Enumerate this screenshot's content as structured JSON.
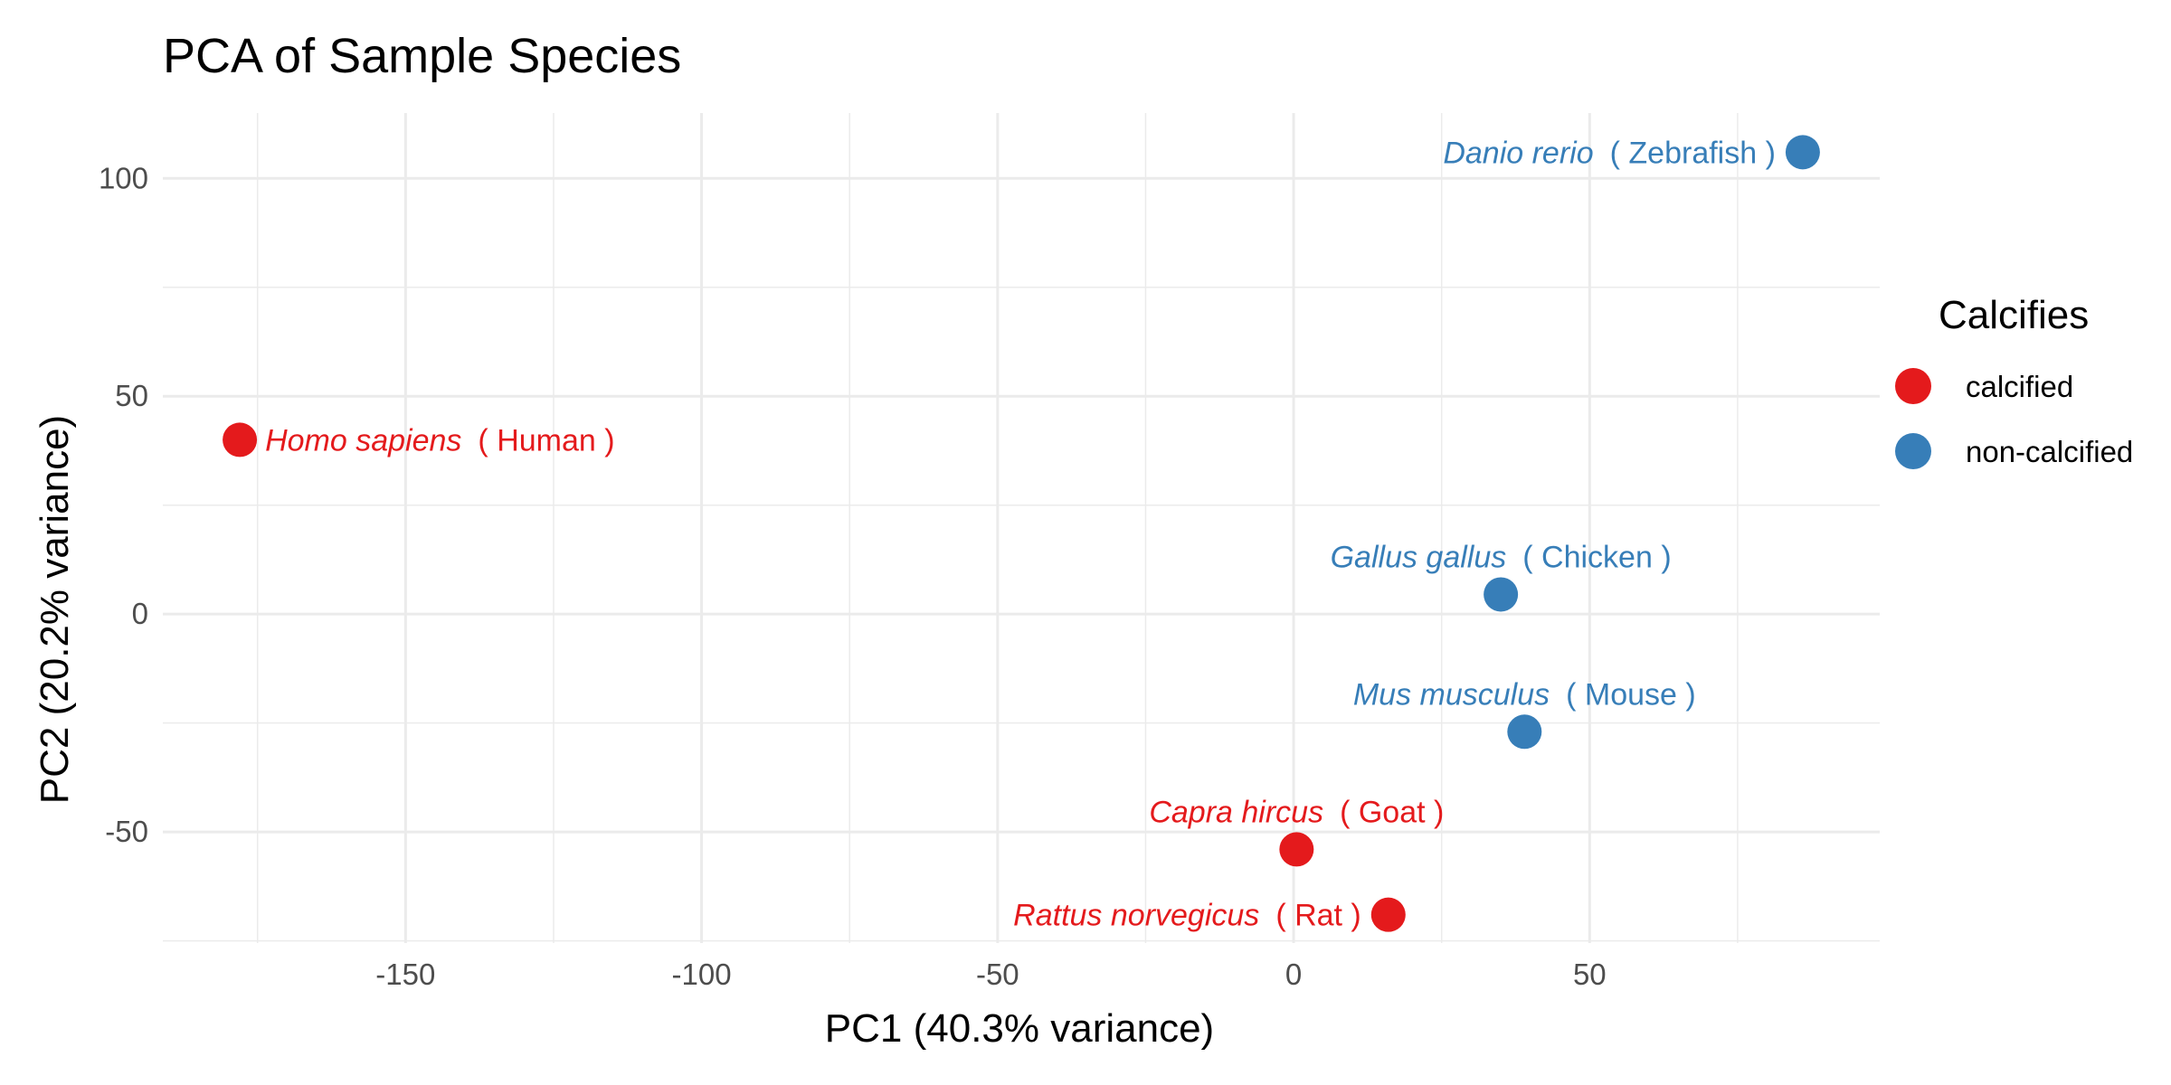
{
  "chart_data": {
    "type": "scatter",
    "title": "PCA of Sample Species",
    "xlabel": "PC1 (40.3% variance)",
    "ylabel": "PC2 (20.2% variance)",
    "xlim": [
      -191,
      99
    ],
    "ylim": [
      -75.5,
      115
    ],
    "x_ticks": [
      -150,
      -100,
      -50,
      0,
      50
    ],
    "y_ticks": [
      -50,
      0,
      50,
      100
    ],
    "grid": true,
    "legend": {
      "title": "Calcifies",
      "position": "right",
      "entries": [
        {
          "label": "calcified",
          "color": "#E41A1C"
        },
        {
          "label": "non-calcified",
          "color": "#377EB8"
        }
      ]
    },
    "points": [
      {
        "species": "Danio rerio",
        "common": "( Zebrafish )",
        "x": 86,
        "y": 106,
        "group": "non-calcified",
        "label_side": "left"
      },
      {
        "species": "Homo sapiens",
        "common": "( Human )",
        "x": -178,
        "y": 40,
        "group": "calcified",
        "label_side": "right"
      },
      {
        "species": "Gallus gallus",
        "common": "( Chicken )",
        "x": 35,
        "y": 4.5,
        "group": "non-calcified",
        "label_side": "above"
      },
      {
        "species": "Mus musculus",
        "common": "( Mouse )",
        "x": 39,
        "y": -27,
        "group": "non-calcified",
        "label_side": "above"
      },
      {
        "species": "Capra hircus",
        "common": "( Goat )",
        "x": 0.5,
        "y": -54,
        "group": "calcified",
        "label_side": "above"
      },
      {
        "species": "Rattus norvegicus",
        "common": "( Rat )",
        "x": 16,
        "y": -69,
        "group": "calcified",
        "label_side": "left"
      }
    ]
  }
}
